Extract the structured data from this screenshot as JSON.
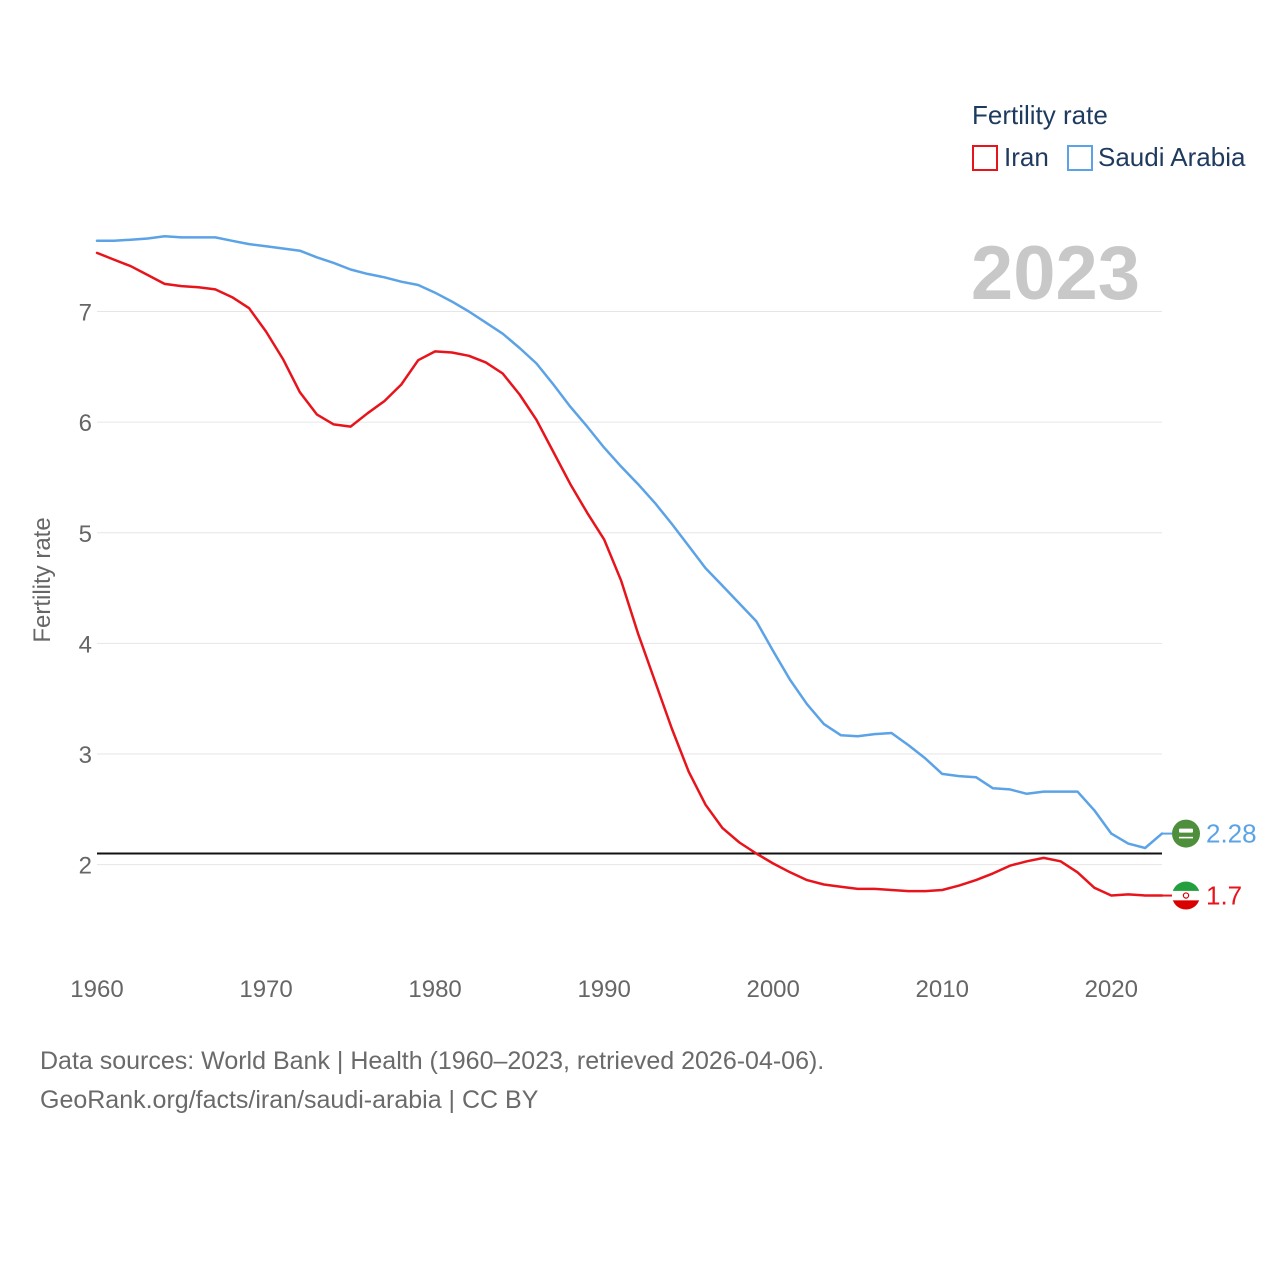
{
  "chart_data": {
    "type": "line",
    "legend": {
      "title": "Fertility rate",
      "position": "top-right"
    },
    "year_label": "2023",
    "ylabel": "Fertility rate",
    "xlim": [
      1960,
      2023
    ],
    "ylim": [
      1.3,
      7.9
    ],
    "x_ticks": [
      1960,
      1970,
      1980,
      1990,
      2000,
      2010,
      2020
    ],
    "y_ticks": [
      2,
      3,
      4,
      5,
      6,
      7
    ],
    "reference_line": {
      "value": 2.1
    },
    "series": [
      {
        "name": "Iran",
        "color": "#e8141c",
        "flag_icon": "iran-flag-icon",
        "end_label": "1.7",
        "x": [
          1960,
          1961,
          1962,
          1963,
          1964,
          1965,
          1966,
          1967,
          1968,
          1969,
          1970,
          1971,
          1972,
          1973,
          1974,
          1975,
          1976,
          1977,
          1978,
          1979,
          1980,
          1981,
          1982,
          1983,
          1984,
          1985,
          1986,
          1987,
          1988,
          1989,
          1990,
          1991,
          1992,
          1993,
          1994,
          1995,
          1996,
          1997,
          1998,
          1999,
          2000,
          2001,
          2002,
          2003,
          2004,
          2005,
          2006,
          2007,
          2008,
          2009,
          2010,
          2011,
          2012,
          2013,
          2014,
          2015,
          2016,
          2017,
          2018,
          2019,
          2020,
          2021,
          2022,
          2023
        ],
        "values": [
          7.53,
          7.47,
          7.41,
          7.33,
          7.25,
          7.23,
          7.22,
          7.2,
          7.13,
          7.03,
          6.82,
          6.57,
          6.27,
          6.07,
          5.98,
          5.96,
          6.08,
          6.19,
          6.34,
          6.56,
          6.64,
          6.63,
          6.6,
          6.54,
          6.44,
          6.25,
          6.02,
          5.73,
          5.44,
          5.18,
          4.94,
          4.57,
          4.09,
          3.66,
          3.23,
          2.84,
          2.54,
          2.33,
          2.2,
          2.1,
          2.01,
          1.93,
          1.86,
          1.82,
          1.8,
          1.78,
          1.78,
          1.77,
          1.76,
          1.76,
          1.77,
          1.81,
          1.86,
          1.92,
          1.99,
          2.03,
          2.06,
          2.03,
          1.93,
          1.79,
          1.72,
          1.73,
          1.72,
          1.72
        ]
      },
      {
        "name": "Saudi Arabia",
        "color": "#5ba3e6",
        "flag_icon": "saudi-arabia-flag-icon",
        "end_label": "2.28",
        "x": [
          1960,
          1961,
          1962,
          1963,
          1964,
          1965,
          1966,
          1967,
          1968,
          1969,
          1970,
          1971,
          1972,
          1973,
          1974,
          1975,
          1976,
          1977,
          1978,
          1979,
          1980,
          1981,
          1982,
          1983,
          1984,
          1985,
          1986,
          1987,
          1988,
          1989,
          1990,
          1991,
          1992,
          1993,
          1994,
          1995,
          1996,
          1997,
          1998,
          1999,
          2000,
          2001,
          2002,
          2003,
          2004,
          2005,
          2006,
          2007,
          2008,
          2009,
          2010,
          2011,
          2012,
          2013,
          2014,
          2015,
          2016,
          2017,
          2018,
          2019,
          2020,
          2021,
          2022,
          2023
        ],
        "values": [
          7.64,
          7.64,
          7.65,
          7.66,
          7.68,
          7.67,
          7.67,
          7.67,
          7.64,
          7.61,
          7.59,
          7.57,
          7.55,
          7.49,
          7.44,
          7.38,
          7.34,
          7.31,
          7.27,
          7.24,
          7.17,
          7.09,
          7.0,
          6.9,
          6.8,
          6.67,
          6.53,
          6.34,
          6.14,
          5.96,
          5.77,
          5.6,
          5.44,
          5.27,
          5.08,
          4.88,
          4.68,
          4.52,
          4.36,
          4.2,
          3.93,
          3.67,
          3.45,
          3.27,
          3.17,
          3.16,
          3.18,
          3.19,
          3.08,
          2.96,
          2.82,
          2.8,
          2.79,
          2.69,
          2.68,
          2.64,
          2.66,
          2.66,
          2.66,
          2.49,
          2.28,
          2.19,
          2.15,
          2.28
        ]
      }
    ]
  },
  "footer": {
    "source": "Data sources: World Bank | Health (1960–2023, retrieved 2026-04-06).",
    "attribution": "GeoRank.org/facts/iran/saudi-arabia | CC BY"
  }
}
